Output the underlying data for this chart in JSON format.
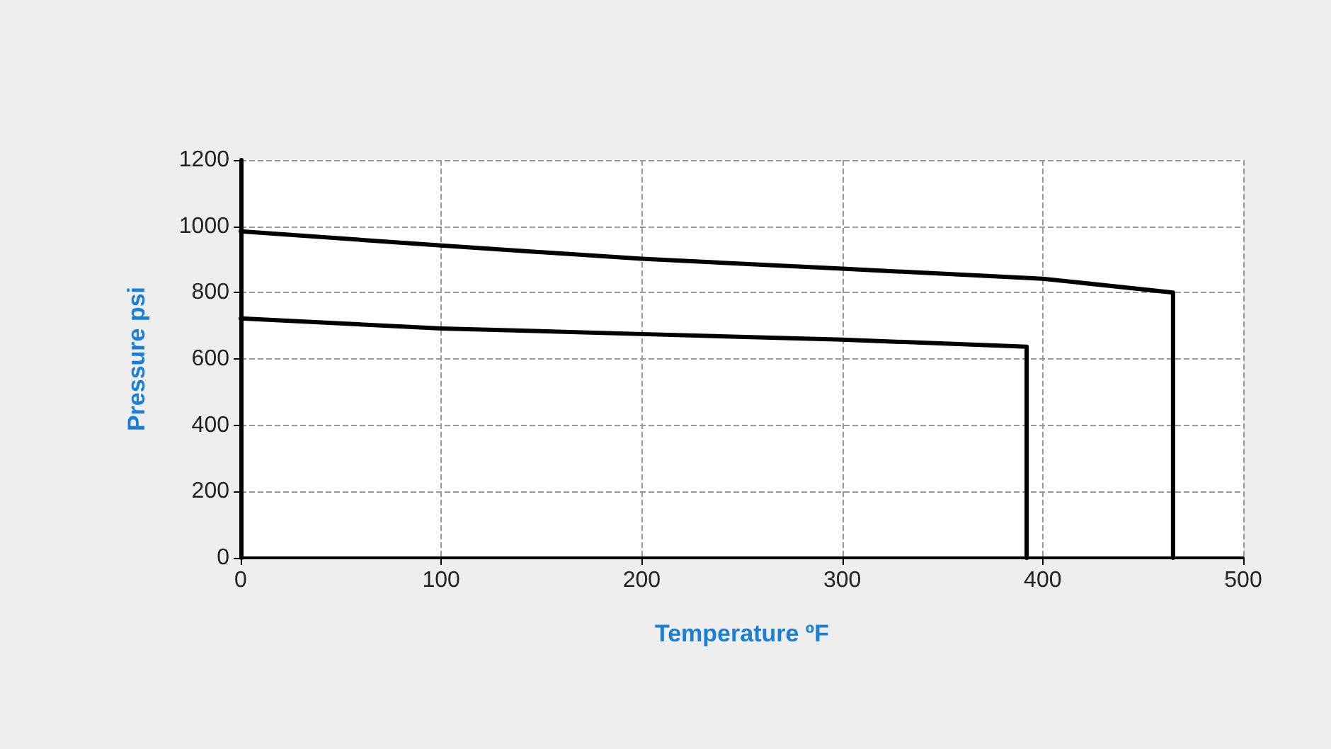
{
  "chart_data": {
    "type": "line",
    "xlabel": "Temperature ºF",
    "ylabel": "Pressure psi",
    "series": [
      {
        "color": "#000000",
        "x": [
          0,
          100,
          200,
          300,
          400,
          465,
          465
        ],
        "values": [
          985,
          942,
          902,
          872,
          842,
          800,
          0
        ]
      },
      {
        "color": "#000000",
        "x": [
          0,
          100,
          200,
          300,
          392,
          392
        ],
        "values": [
          722,
          692,
          675,
          658,
          637,
          0
        ]
      }
    ],
    "xlim": [
      0,
      500
    ],
    "xticks": [
      0,
      100,
      200,
      300,
      400,
      500
    ],
    "ylim": [
      0,
      1200
    ],
    "yticks": [
      0,
      200,
      400,
      600,
      800,
      1000,
      1200
    ],
    "grid": true,
    "marker": "none",
    "line_style": "solid"
  }
}
